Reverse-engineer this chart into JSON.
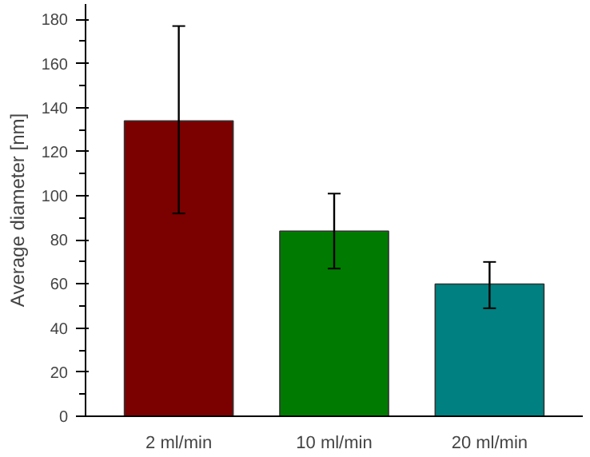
{
  "chart_data": {
    "type": "bar",
    "ylabel": "Average diameter [nm]",
    "categories": [
      "2 ml/min",
      "10 ml/min",
      "20 ml/min"
    ],
    "values": [
      134,
      84,
      60
    ],
    "colors": [
      "#7b0000",
      "#007a00",
      "#008080"
    ],
    "errors": [
      [
        92,
        177
      ],
      [
        67,
        101
      ],
      [
        49,
        70
      ]
    ],
    "ylim": [
      0,
      187
    ],
    "yticks": [
      0,
      20,
      40,
      60,
      80,
      100,
      120,
      140,
      160,
      180
    ],
    "grid": false
  }
}
